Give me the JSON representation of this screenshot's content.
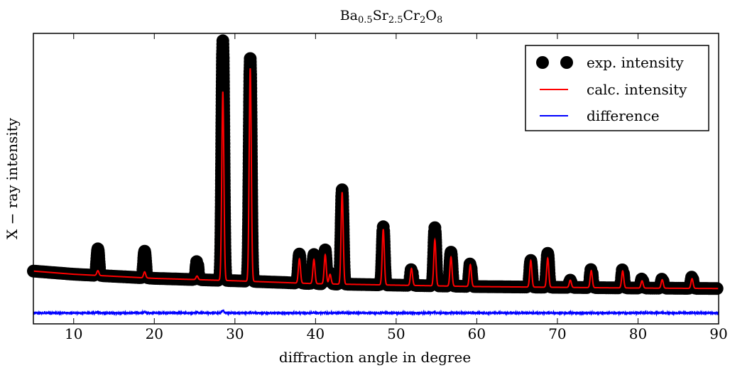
{
  "chart_data": {
    "type": "line",
    "title": "Ba$_{0.5}$Sr$_{2.5}$Cr$_2$O$_8$",
    "title_parts": {
      "el1": "Ba",
      "sub1": "0.5",
      "el2": "Sr",
      "sub2": "2.5",
      "el3": "Cr",
      "sub3": "2",
      "el4": "O",
      "sub4": "8"
    },
    "xlabel": "diffraction angle in degree",
    "ylabel": "X − ray intensity",
    "xlim": [
      5,
      90
    ],
    "ylim": [
      -0.1,
      1.1
    ],
    "xticks": [
      10,
      20,
      30,
      40,
      50,
      60,
      70,
      80,
      90
    ],
    "yticks": [],
    "grid": false,
    "legend_position": "top-right",
    "background": "linear",
    "background_points": [
      [
        5,
        0.118
      ],
      [
        10,
        0.105
      ],
      [
        20,
        0.088
      ],
      [
        30,
        0.078
      ],
      [
        40,
        0.066
      ],
      [
        60,
        0.054
      ],
      [
        80,
        0.048
      ],
      [
        90,
        0.046
      ]
    ],
    "peaks": [
      {
        "x": 13.0,
        "exp": 0.11,
        "calc": 0.02
      },
      {
        "x": 18.8,
        "exp": 0.11,
        "calc": 0.025
      },
      {
        "x": 25.3,
        "exp": 0.08,
        "calc": 0.015
      },
      {
        "x": 28.5,
        "exp": 0.99,
        "calc": 0.78
      },
      {
        "x": 31.9,
        "exp": 0.92,
        "calc": 0.88
      },
      {
        "x": 38.0,
        "exp": 0.12,
        "calc": 0.1
      },
      {
        "x": 39.8,
        "exp": 0.12,
        "calc": 0.1
      },
      {
        "x": 41.2,
        "exp": 0.14,
        "calc": 0.12
      },
      {
        "x": 41.8,
        "exp": 0.05,
        "calc": 0.04
      },
      {
        "x": 43.3,
        "exp": 0.39,
        "calc": 0.38
      },
      {
        "x": 48.4,
        "exp": 0.24,
        "calc": 0.23
      },
      {
        "x": 51.9,
        "exp": 0.07,
        "calc": 0.07
      },
      {
        "x": 54.8,
        "exp": 0.24,
        "calc": 0.19
      },
      {
        "x": 56.8,
        "exp": 0.14,
        "calc": 0.12
      },
      {
        "x": 59.2,
        "exp": 0.1,
        "calc": 0.09
      },
      {
        "x": 66.7,
        "exp": 0.11,
        "calc": 0.11
      },
      {
        "x": 68.8,
        "exp": 0.14,
        "calc": 0.12
      },
      {
        "x": 71.6,
        "exp": 0.03,
        "calc": 0.03
      },
      {
        "x": 74.2,
        "exp": 0.08,
        "calc": 0.07
      },
      {
        "x": 78.1,
        "exp": 0.08,
        "calc": 0.07
      },
      {
        "x": 80.5,
        "exp": 0.04,
        "calc": 0.03
      },
      {
        "x": 83.0,
        "exp": 0.04,
        "calc": 0.035
      },
      {
        "x": 86.7,
        "exp": 0.05,
        "calc": 0.04
      }
    ],
    "difference_offset": -0.055,
    "series": [
      {
        "name": "exp. intensity",
        "style": "markers",
        "color": "#000000"
      },
      {
        "name": "calc. intensity",
        "style": "line",
        "color": "#ff0000"
      },
      {
        "name": "difference",
        "style": "line",
        "color": "#0000ff"
      }
    ]
  }
}
